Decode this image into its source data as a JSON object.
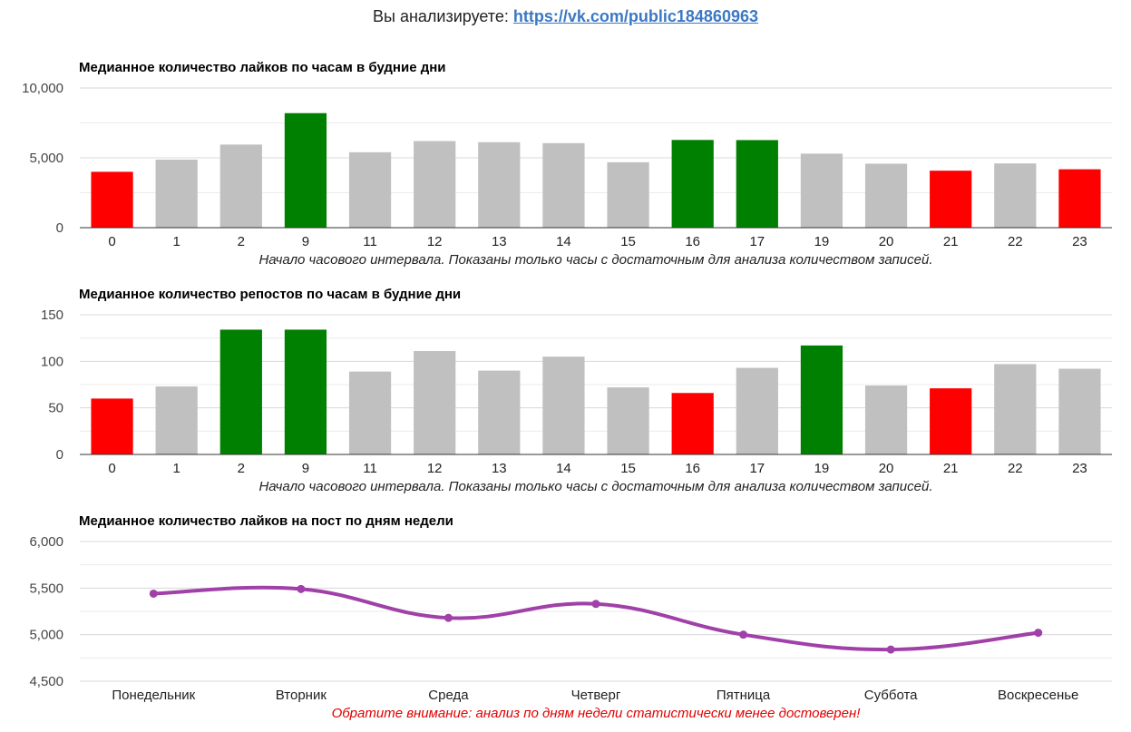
{
  "header": {
    "prefix": "Вы анализируете:",
    "link": "https://vk.com/public184860963"
  },
  "colors": {
    "low": "#ff0000",
    "high": "#008000",
    "normal": "#c0c0c0",
    "line": "#a040a8",
    "grid": "#d8d8d8",
    "baseline": "#333333"
  },
  "chart_data": [
    {
      "type": "bar",
      "title": "Медианное количество лайков по часам в будние дни",
      "caption": "Начало часового интервала. Показаны только часы с достаточным для анализа количеством записей.",
      "categories": [
        "0",
        "1",
        "2",
        "9",
        "11",
        "12",
        "13",
        "14",
        "15",
        "16",
        "17",
        "19",
        "20",
        "21",
        "22",
        "23"
      ],
      "values": [
        4000,
        4870,
        5950,
        8200,
        5400,
        6200,
        6120,
        6050,
        4680,
        6280,
        6270,
        5300,
        4580,
        4080,
        4600,
        4180
      ],
      "highlight": [
        "low",
        "normal",
        "normal",
        "high",
        "normal",
        "normal",
        "normal",
        "normal",
        "normal",
        "high",
        "high",
        "normal",
        "normal",
        "low",
        "normal",
        "low"
      ],
      "ylim": [
        0,
        10000
      ],
      "yticks": [
        0,
        5000,
        10000
      ],
      "ytick_labels": [
        "0",
        "5,000",
        "10,000"
      ],
      "grid": true
    },
    {
      "type": "bar",
      "title": "Медианное количество репостов по часам в будние дни",
      "caption": "Начало часового интервала. Показаны только часы с достаточным для анализа количеством записей.",
      "categories": [
        "0",
        "1",
        "2",
        "9",
        "11",
        "12",
        "13",
        "14",
        "15",
        "16",
        "17",
        "19",
        "20",
        "21",
        "22",
        "23"
      ],
      "values": [
        60,
        73,
        134,
        134,
        89,
        111,
        90,
        105,
        72,
        66,
        93,
        117,
        74,
        71,
        97,
        92
      ],
      "highlight": [
        "low",
        "normal",
        "high",
        "high",
        "normal",
        "normal",
        "normal",
        "normal",
        "normal",
        "low",
        "normal",
        "high",
        "normal",
        "low",
        "normal",
        "normal"
      ],
      "ylim": [
        0,
        150
      ],
      "yticks": [
        0,
        50,
        100,
        150
      ],
      "ytick_labels": [
        "0",
        "50",
        "100",
        "150"
      ],
      "grid": true
    },
    {
      "type": "line",
      "title": "Медианное количество лайков на пост по дням недели",
      "caption": "Обратите внимание: анализ по дням недели статистически менее достоверен!",
      "categories": [
        "Понедельник",
        "Вторник",
        "Среда",
        "Четверг",
        "Пятница",
        "Суббота",
        "Воскресенье"
      ],
      "values": [
        5440,
        5490,
        5180,
        5330,
        5000,
        4840,
        5020
      ],
      "ylim": [
        4500,
        6000
      ],
      "yticks": [
        4500,
        5000,
        5500,
        6000
      ],
      "ytick_labels": [
        "4,500",
        "5,000",
        "5,500",
        "6,000"
      ],
      "grid": true
    }
  ]
}
